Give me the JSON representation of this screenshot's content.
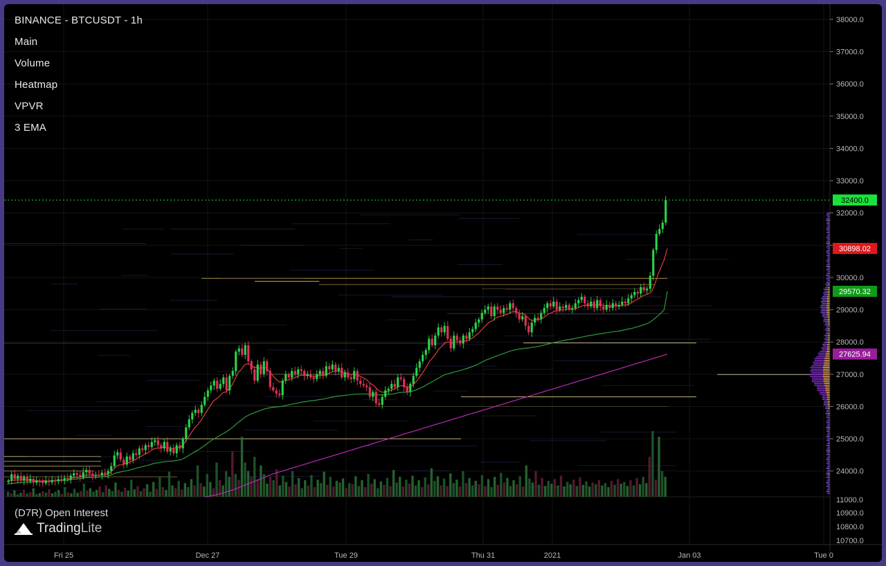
{
  "header": {
    "title": "BINANCE - BTCUSDT - 1h",
    "layers": [
      "Main",
      "Volume",
      "Heatmap",
      "VPVR",
      "3 EMA"
    ]
  },
  "lower_pane": {
    "label": "(D7R) Open Interest"
  },
  "branding": {
    "name_a": "Trading",
    "name_b": "Lite"
  },
  "colors": {
    "background": "#000000",
    "frame": "#4a3a85",
    "up": "#2bd34a",
    "down": "#e0315a",
    "ema_fast": "#e33b3b",
    "ema_mid": "#2e9a3c",
    "ema_slow": "#b92bb6",
    "last_price": "#18e23b"
  },
  "chart_data": [
    {
      "type": "line",
      "title": "BINANCE - BTCUSDT - 1h",
      "x_axis": {
        "ticks": [
          "Fri 25",
          "Dec 27",
          "Tue 29",
          "Thu 31",
          "2021",
          "Jan 03",
          "Tue 0"
        ]
      },
      "y_axis": {
        "ticks": [
          "38000.0",
          "37000.0",
          "36000.0",
          "35000.0",
          "34000.0",
          "33000.0",
          "32000.0",
          "31000.0",
          "30000.0",
          "29000.0",
          "28000.0",
          "27000.0",
          "26000.0",
          "25000.0",
          "24000.0"
        ],
        "ylim": [
          23200,
          38300
        ]
      },
      "price_tags": [
        {
          "value": "32400.0",
          "color": "#18e23b",
          "text_color": "#000000"
        },
        {
          "value": "30898.02",
          "color": "#e0181d",
          "text_color": "#ffffff"
        },
        {
          "value": "29570.32",
          "color": "#109a1a",
          "text_color": "#ffffff"
        },
        {
          "value": "27625.94",
          "color": "#9a1d9a",
          "text_color": "#ffffff"
        }
      ],
      "candles_close": [
        23700,
        23900,
        23750,
        23850,
        23700,
        23820,
        23680,
        23760,
        23640,
        23700,
        23660,
        23620,
        23700,
        23650,
        23720,
        23680,
        23750,
        23700,
        23780,
        23740,
        23860,
        23930,
        23880,
        23800,
        23960,
        24030,
        23920,
        23850,
        23880,
        23860,
        23950,
        23900,
        24000,
        24150,
        24480,
        24580,
        24350,
        24200,
        24450,
        24350,
        24550,
        24500,
        24700,
        24650,
        24800,
        24740,
        24900,
        24950,
        24800,
        24700,
        24900,
        24600,
        24700,
        24550,
        24800,
        24700,
        25000,
        25350,
        25600,
        25800,
        25900,
        25800,
        26050,
        26300,
        26500,
        26650,
        26800,
        26550,
        26700,
        26900,
        26500,
        26950,
        27100,
        27700,
        27800,
        27600,
        27900,
        27400,
        27150,
        26800,
        27300,
        27000,
        27400,
        27100,
        26600,
        26500,
        26400,
        26350,
        26800,
        27000,
        26900,
        27100,
        27000,
        27150,
        27100,
        26950,
        27000,
        26900,
        26850,
        27000,
        27100,
        26950,
        27250,
        27150,
        27300,
        27100,
        27200,
        26900,
        27050,
        26900,
        26850,
        27100,
        26800,
        26700,
        26650,
        26600,
        26300,
        26450,
        26100,
        26050,
        26300,
        26500,
        26550,
        26700,
        26600,
        26900,
        26850,
        26600,
        26450,
        26700,
        26950,
        27200,
        27400,
        27600,
        27750,
        28100,
        27900,
        28200,
        28450,
        28300,
        28500,
        28100,
        27800,
        28200,
        28050,
        27950,
        28200,
        28100,
        28300,
        28400,
        28600,
        28700,
        28900,
        29000,
        29100,
        28800,
        29100,
        29000,
        28900,
        29050,
        29000,
        29200,
        29050,
        28900,
        28700,
        28800,
        28500,
        28300,
        28600,
        28750,
        28700,
        28900,
        29050,
        29200,
        29100,
        29250,
        29000,
        29100,
        29050,
        29150,
        29000,
        29050,
        29200,
        29300,
        29400,
        29200,
        29100,
        29250,
        29050,
        29300,
        29100,
        29000,
        29150,
        29050,
        29200,
        29100,
        29150,
        29250,
        29200,
        29350,
        29450,
        29550,
        29500,
        29700,
        29600,
        29650,
        30050,
        30850,
        31350,
        31500,
        31700,
        32400
      ],
      "series": [
        {
          "name": "EMA",
          "color": "#e33b3b",
          "values": [
            23680,
            23700,
            23710,
            23720,
            23720,
            23730,
            23720,
            23730,
            23720,
            23710,
            23700,
            23690,
            23700,
            23690,
            23700,
            23700,
            23710,
            23710,
            23720,
            23720,
            23750,
            23790,
            23810,
            23810,
            23840,
            23870,
            23880,
            23870,
            23870,
            23870,
            23880,
            23880,
            23900,
            23950,
            24050,
            24150,
            24190,
            24190,
            24240,
            24260,
            24320,
            24350,
            24420,
            24460,
            24530,
            24560,
            24630,
            24690,
            24710,
            24710,
            24740,
            24720,
            24720,
            24700,
            24720,
            24720,
            24780,
            24900,
            25050,
            25200,
            25340,
            25440,
            25570,
            25720,
            25880,
            26030,
            26170,
            26240,
            26320,
            26430,
            26450,
            26550,
            26670,
            26880,
            27060,
            27160,
            27300,
            27320,
            27290,
            27200,
            27220,
            27170,
            27210,
            27190,
            27060,
            26950,
            26850,
            26760,
            26770,
            26810,
            26820,
            26870,
            26890,
            26940,
            26970,
            26960,
            26970,
            26950,
            26930,
            26940,
            26970,
            26960,
            27010,
            27030,
            27080,
            27080,
            27110,
            27060,
            27060,
            27020,
            26990,
            27010,
            26970,
            26930,
            26880,
            26820,
            26720,
            26670,
            26570,
            26480,
            26440,
            26450,
            26470,
            26520,
            26540,
            26610,
            26650,
            26630,
            26600,
            26620,
            26690,
            26800,
            26930,
            27070,
            27220,
            27400,
            27500,
            27630,
            27780,
            27870,
            27980,
            28000,
            27960,
            28000,
            28010,
            27990,
            28030,
            28040,
            28080,
            28140,
            28220,
            28300,
            28410,
            28510,
            28610,
            28650,
            28730,
            28780,
            28800,
            28840,
            28860,
            28920,
            28940,
            28930,
            28890,
            28870,
            28800,
            28700,
            28670,
            28690,
            28690,
            28730,
            28790,
            28870,
            28900,
            28960,
            28970,
            28990,
            29000,
            29020,
            29020,
            29020,
            29040,
            29080,
            29130,
            29140,
            29130,
            29150,
            29140,
            29160,
            29150,
            29120,
            29130,
            29110,
            29120,
            29120,
            29120,
            29140,
            29150,
            29180,
            29240,
            29310,
            29350,
            29420,
            29460,
            29490,
            29560,
            29780,
            30080,
            30320,
            30550,
            30898
          ]
        },
        {
          "name": "EMA",
          "color": "#2e9a3c",
          "values": [
            23600,
            23610,
            23620,
            23630,
            23640,
            23650,
            23650,
            23660,
            23660,
            23670,
            23670,
            23670,
            23680,
            23680,
            23690,
            23690,
            23700,
            23700,
            23710,
            23710,
            23720,
            23740,
            23750,
            23760,
            23770,
            23790,
            23800,
            23800,
            23810,
            23810,
            23820,
            23830,
            23840,
            23860,
            23900,
            23940,
            23960,
            23980,
            24000,
            24020,
            24050,
            24070,
            24100,
            24120,
            24150,
            24170,
            24200,
            24230,
            24250,
            24260,
            24280,
            24290,
            24300,
            24300,
            24320,
            24330,
            24360,
            24400,
            24460,
            24520,
            24580,
            24630,
            24690,
            24760,
            24830,
            24900,
            24970,
            25020,
            25080,
            25140,
            25190,
            25250,
            25320,
            25400,
            25490,
            25560,
            25640,
            25700,
            25750,
            25790,
            25830,
            25860,
            25900,
            25930,
            25950,
            25970,
            25980,
            25990,
            26000,
            26020,
            26040,
            26060,
            26080,
            26100,
            26120,
            26140,
            26150,
            26170,
            26180,
            26190,
            26210,
            26220,
            26240,
            26260,
            26280,
            26300,
            26320,
            26330,
            26340,
            26350,
            26360,
            26380,
            26380,
            26390,
            26390,
            26390,
            26380,
            26380,
            26370,
            26360,
            26360,
            26360,
            26370,
            26380,
            26390,
            26410,
            26430,
            26440,
            26440,
            26450,
            26470,
            26500,
            26540,
            26580,
            26630,
            26690,
            26740,
            26790,
            26850,
            26900,
            26960,
            27000,
            27020,
            27050,
            27080,
            27100,
            27130,
            27160,
            27190,
            27220,
            27260,
            27300,
            27350,
            27400,
            27450,
            27480,
            27520,
            27560,
            27590,
            27630,
            27660,
            27700,
            27730,
            27750,
            27770,
            27790,
            27800,
            27810,
            27820,
            27840,
            27850,
            27870,
            27890,
            27920,
            27940,
            27970,
            27990,
            28010,
            28030,
            28050,
            28070,
            28080,
            28100,
            28120,
            28140,
            28160,
            28180,
            28200,
            28210,
            28230,
            28250,
            28260,
            28280,
            28290,
            28310,
            28320,
            28330,
            28350,
            28370,
            28390,
            28410,
            28430,
            28460,
            28490,
            28520,
            28550,
            28590,
            28650,
            28730,
            28810,
            28900,
            29000,
            29570
          ]
        },
        {
          "name": "EMA",
          "color": "#b92bb6",
          "values": [
            23200,
            23210,
            23230,
            23250,
            23270,
            23300,
            23330,
            23360,
            23390,
            23420,
            23460,
            23500,
            23540,
            23580,
            23620,
            23660,
            23700,
            23740,
            23780,
            23820,
            23860,
            23900,
            23930,
            23960,
            23990,
            24020,
            24050,
            24080,
            24110,
            24140,
            24170,
            24200,
            24230,
            24260,
            24290,
            24320,
            24350,
            24380,
            24410,
            24440,
            24470,
            24500,
            24530,
            24560,
            24590,
            24620,
            24650,
            24680,
            24710,
            24740,
            24770,
            24800,
            24830,
            24860,
            24890,
            24920,
            24950,
            24980,
            25010,
            25040,
            25070,
            25100,
            25130,
            25160,
            25190,
            25220,
            25250,
            25280,
            25310,
            25340,
            25370,
            25400,
            25430,
            25460,
            25490,
            25520,
            25550,
            25580,
            25610,
            25640,
            25670,
            25700,
            25730,
            25760,
            25790,
            25820,
            25850,
            25880,
            25910,
            25940,
            25970,
            26000,
            26030,
            26060,
            26090,
            26120,
            26150,
            26180,
            26210,
            26240,
            26270,
            26300,
            26330,
            26360,
            26390,
            26420,
            26450,
            26480,
            26510,
            26540,
            26570,
            26600,
            26630,
            26660,
            26690,
            26720,
            26750,
            26780,
            26810,
            26840,
            26870,
            26900,
            26930,
            26960,
            26990,
            27020,
            27050,
            27080,
            27110,
            27140,
            27170,
            27200,
            27230,
            27260,
            27290,
            27320,
            27350,
            27380,
            27410,
            27440,
            27470,
            27500,
            27530,
            27560,
            27590,
            27625.94
          ]
        }
      ]
    },
    {
      "type": "bar",
      "title": "Volume",
      "values": [
        18,
        12,
        22,
        9,
        14,
        25,
        11,
        16,
        30,
        10,
        13,
        20,
        15,
        26,
        12,
        18,
        24,
        10,
        34,
        16,
        12,
        28,
        14,
        20,
        46,
        22,
        30,
        18,
        24,
        36,
        16,
        40,
        28,
        20,
        50,
        24,
        18,
        32,
        22,
        60,
        26,
        38,
        20,
        30,
        44,
        18,
        52,
        28,
        70,
        34,
        24,
        88,
        40,
        30,
        56,
        26,
        48,
        34,
        62,
        40,
        110,
        48,
        36,
        80,
        52,
        30,
        120,
        58,
        40,
        90,
        70,
        160,
        80,
        60,
        210,
        120,
        90,
        70,
        140,
        60,
        110,
        80,
        46,
        70,
        58,
        96,
        40,
        74,
        52,
        36,
        90,
        44,
        66,
        30,
        58,
        40,
        76,
        34,
        60,
        48,
        88,
        42,
        70,
        36,
        56,
        50,
        64,
        30,
        48,
        44,
        72,
        38,
        58,
        34,
        80,
        46,
        62,
        30,
        54,
        42,
        66,
        38,
        94,
        50,
        70,
        36,
        60,
        46,
        74,
        40,
        58,
        34,
        68,
        44,
        100,
        56,
        72,
        40,
        64,
        38,
        82,
        48,
        60,
        36,
        90,
        48,
        66,
        40,
        56,
        44,
        76,
        38,
        62,
        34,
        70,
        42,
        84,
        50,
        66,
        38,
        58,
        44,
        72,
        36,
        110,
        64,
        50,
        90,
        42,
        66,
        38,
        56,
        46,
        62,
        40,
        74,
        36,
        52,
        44,
        60,
        38,
        68,
        42,
        54,
        36,
        50,
        44,
        58,
        40,
        48,
        34,
        56,
        42,
        62,
        46,
        52,
        38,
        58,
        40,
        66,
        44,
        70,
        48,
        140,
        230,
        60,
        210,
        90,
        70
      ]
    }
  ]
}
